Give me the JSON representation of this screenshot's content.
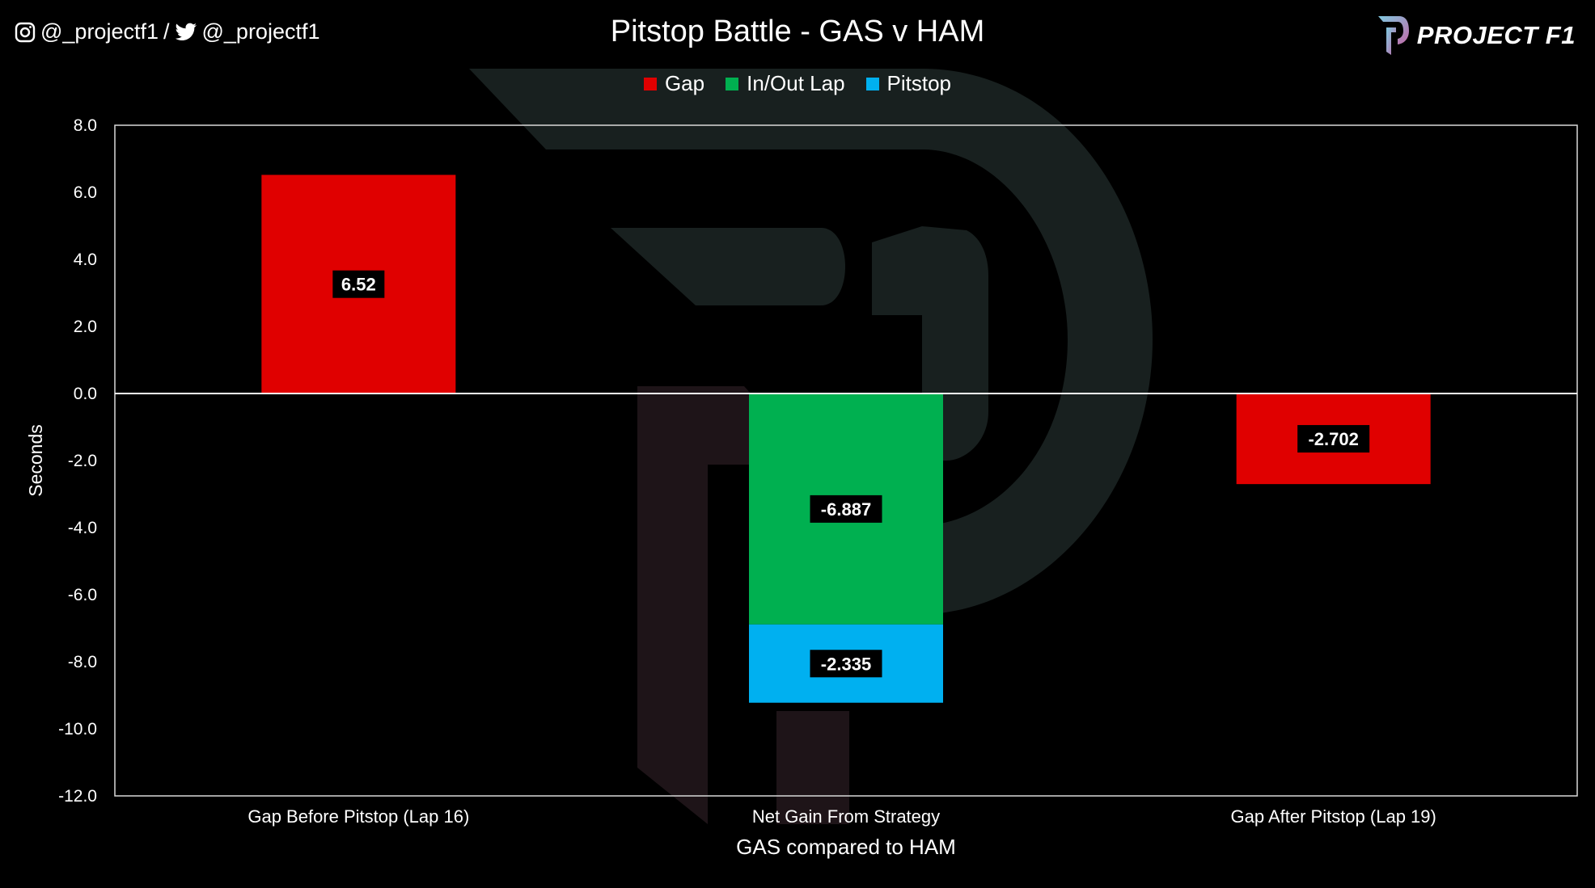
{
  "header": {
    "social_instagram": "@_projectf1",
    "social_separator": "/",
    "social_twitter": "@_projectf1",
    "brand": "PROJECT F1"
  },
  "colors": {
    "gap": "#e00000",
    "inout": "#00b050",
    "pitstop": "#00b0f0",
    "background": "#000000",
    "watermark": "#1a2022"
  },
  "chart_data": {
    "type": "bar",
    "stacked": true,
    "title": "Pitstop Battle - GAS v HAM",
    "xlabel": "GAS compared to HAM",
    "ylabel": "Seconds",
    "ylim": [
      -12,
      8
    ],
    "yticks": [
      "8.0",
      "6.0",
      "4.0",
      "2.0",
      "0.0",
      "-2.0",
      "-4.0",
      "-6.0",
      "-8.0",
      "-10.0",
      "-12.0"
    ],
    "categories": [
      "Gap Before Pitstop (Lap 16)",
      "Net Gain From Strategy",
      "Gap After Pitstop (Lap 19)"
    ],
    "legend_position": "top",
    "series": [
      {
        "name": "Gap",
        "values": [
          6.52,
          null,
          -2.702
        ],
        "labels": [
          "6.52",
          "",
          "-2.702"
        ]
      },
      {
        "name": "In/Out Lap",
        "values": [
          null,
          -6.887,
          null
        ],
        "labels": [
          "",
          "-6.887",
          ""
        ]
      },
      {
        "name": "Pitstop",
        "values": [
          null,
          -2.335,
          null
        ],
        "labels": [
          "",
          "-2.335",
          ""
        ]
      }
    ]
  }
}
